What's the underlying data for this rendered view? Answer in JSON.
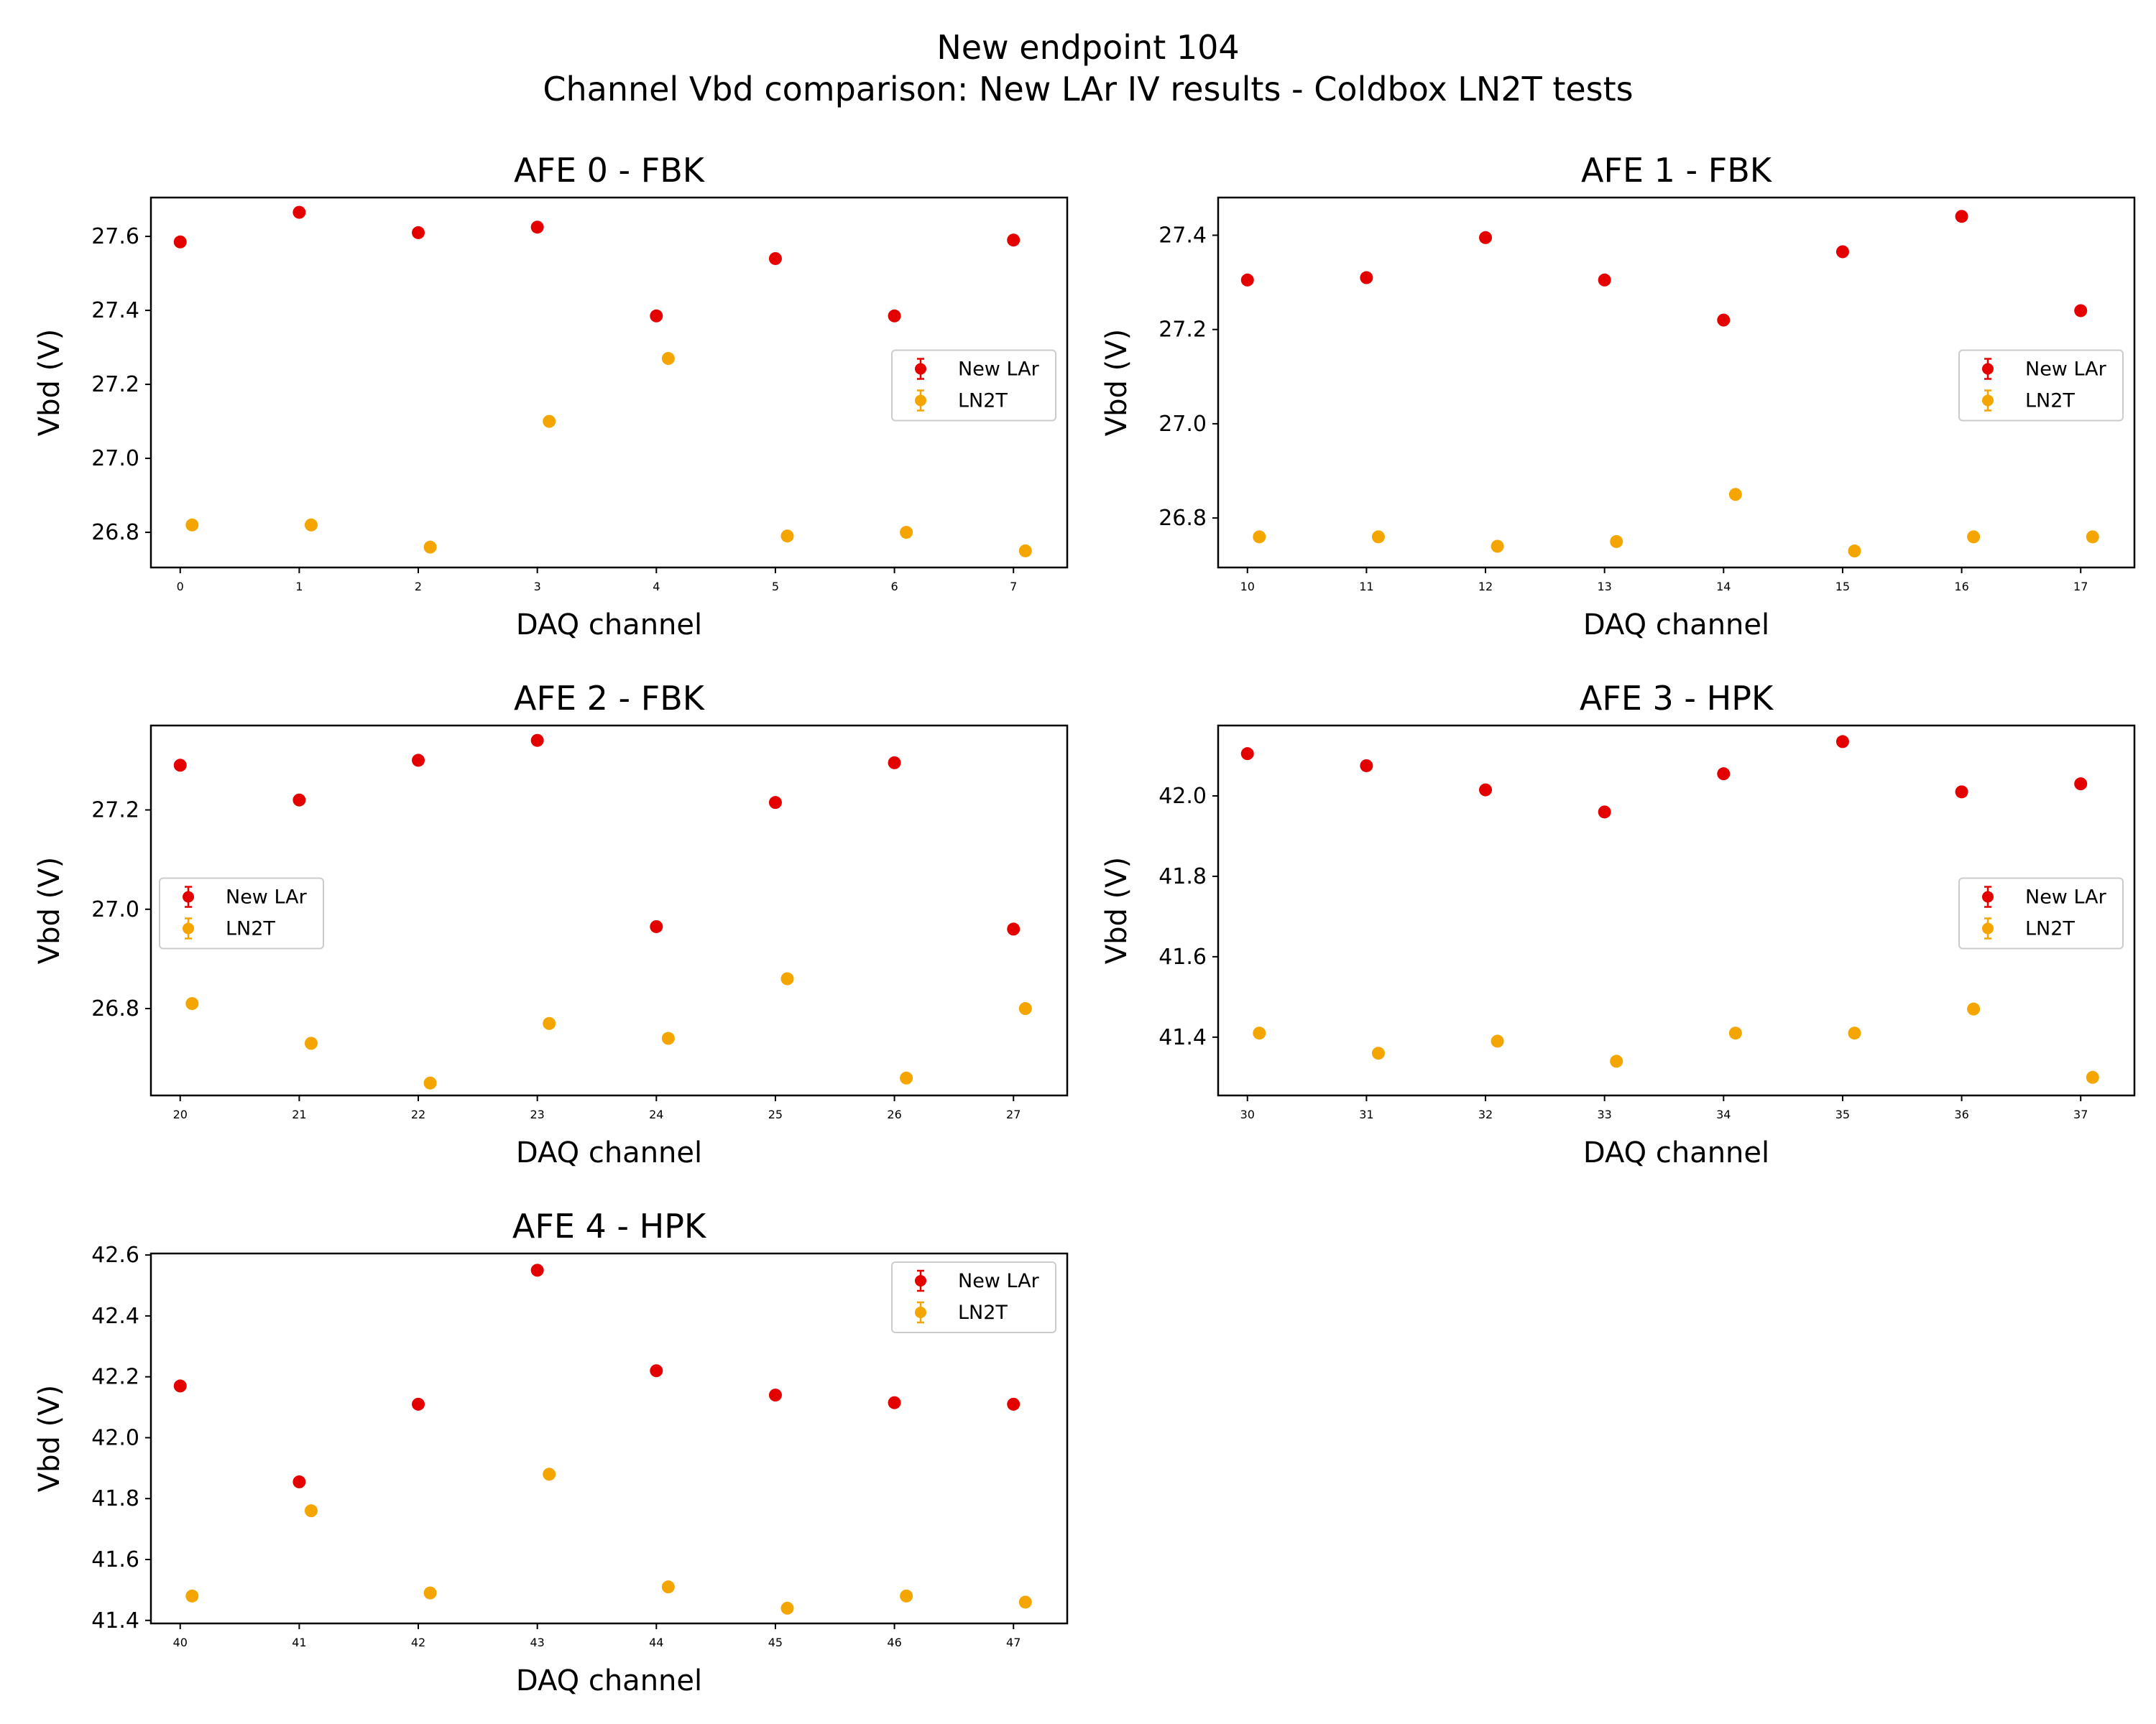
{
  "figure": {
    "title_line1": "New endpoint 104",
    "title_line2": "Channel Vbd comparison: New LAr IV results -  Coldbox LN2T tests"
  },
  "colors": {
    "new_lar": "#e50000",
    "ln2t": "#f5a500"
  },
  "chart_data": [
    {
      "type": "scatter",
      "title": "AFE 0 - FBK",
      "xlabel": "DAQ channel",
      "ylabel": "Vbd (V)",
      "x_ticks": [
        0,
        1,
        2,
        3,
        4,
        5,
        6,
        7
      ],
      "y_ticks": [
        26.8,
        27.0,
        27.2,
        27.4,
        27.6
      ],
      "ylim": [
        26.705,
        27.705
      ],
      "legend": "center-right",
      "series": [
        {
          "name": "New LAr",
          "x": [
            0,
            1,
            2,
            3,
            4,
            5,
            6,
            7
          ],
          "y": [
            27.585,
            27.665,
            27.61,
            27.625,
            27.385,
            27.54,
            27.385,
            27.59
          ]
        },
        {
          "name": "LN2T",
          "x": [
            0.1,
            1.1,
            2.1,
            3.1,
            4.1,
            5.1,
            6.1,
            7.1
          ],
          "y": [
            26.82,
            26.82,
            26.76,
            27.1,
            27.27,
            26.79,
            26.8,
            26.75
          ]
        }
      ]
    },
    {
      "type": "scatter",
      "title": "AFE 1 - FBK",
      "xlabel": "DAQ channel",
      "ylabel": "Vbd (V)",
      "x_ticks": [
        10,
        11,
        12,
        13,
        14,
        15,
        16,
        17
      ],
      "y_ticks": [
        26.8,
        27.0,
        27.2,
        27.4
      ],
      "ylim": [
        26.695,
        27.48
      ],
      "legend": "center-right",
      "series": [
        {
          "name": "New LAr",
          "x": [
            10,
            11,
            12,
            13,
            14,
            15,
            16,
            17
          ],
          "y": [
            27.305,
            27.31,
            27.395,
            27.305,
            27.22,
            27.365,
            27.44,
            27.24
          ]
        },
        {
          "name": "LN2T",
          "x": [
            10.1,
            11.1,
            12.1,
            13.1,
            14.1,
            15.1,
            16.1,
            17.1
          ],
          "y": [
            26.76,
            26.76,
            26.74,
            26.75,
            26.85,
            26.73,
            26.76,
            26.76
          ]
        }
      ]
    },
    {
      "type": "scatter",
      "title": "AFE 2 - FBK",
      "xlabel": "DAQ channel",
      "ylabel": "Vbd (V)",
      "x_ticks": [
        20,
        21,
        22,
        23,
        24,
        25,
        26,
        27
      ],
      "y_ticks": [
        26.8,
        27.0,
        27.2
      ],
      "ylim": [
        26.625,
        27.37
      ],
      "legend": "center-left",
      "series": [
        {
          "name": "New LAr",
          "x": [
            20,
            21,
            22,
            23,
            24,
            25,
            26,
            27
          ],
          "y": [
            27.29,
            27.22,
            27.3,
            27.34,
            26.965,
            27.215,
            27.295,
            26.96
          ]
        },
        {
          "name": "LN2T",
          "x": [
            20.1,
            21.1,
            22.1,
            23.1,
            24.1,
            25.1,
            26.1,
            27.1
          ],
          "y": [
            26.81,
            26.73,
            26.65,
            26.77,
            26.74,
            26.86,
            26.66,
            26.8
          ]
        }
      ]
    },
    {
      "type": "scatter",
      "title": "AFE 3 - HPK",
      "xlabel": "DAQ channel",
      "ylabel": "Vbd (V)",
      "x_ticks": [
        30,
        31,
        32,
        33,
        34,
        35,
        36,
        37
      ],
      "y_ticks": [
        41.4,
        41.6,
        41.8,
        42.0
      ],
      "ylim": [
        41.255,
        42.175
      ],
      "legend": "center-right",
      "series": [
        {
          "name": "New LAr",
          "x": [
            30,
            31,
            32,
            33,
            34,
            35,
            36,
            37
          ],
          "y": [
            42.105,
            42.075,
            42.015,
            41.96,
            42.055,
            42.135,
            42.01,
            42.03
          ]
        },
        {
          "name": "LN2T",
          "x": [
            30.1,
            31.1,
            32.1,
            33.1,
            34.1,
            35.1,
            36.1,
            37.1
          ],
          "y": [
            41.41,
            41.36,
            41.39,
            41.34,
            41.41,
            41.41,
            41.47,
            41.3
          ]
        }
      ]
    },
    {
      "type": "scatter",
      "title": "AFE 4 - HPK",
      "xlabel": "DAQ channel",
      "ylabel": "Vbd (V)",
      "x_ticks": [
        40,
        41,
        42,
        43,
        44,
        45,
        46,
        47
      ],
      "y_ticks": [
        41.4,
        41.6,
        41.8,
        42.0,
        42.2,
        42.4,
        42.6
      ],
      "ylim": [
        41.39,
        42.605
      ],
      "legend": "top-right",
      "series": [
        {
          "name": "New LAr",
          "x": [
            40,
            41,
            42,
            43,
            44,
            45,
            46,
            47
          ],
          "y": [
            42.17,
            41.855,
            42.11,
            42.55,
            42.22,
            42.14,
            42.115,
            42.11
          ]
        },
        {
          "name": "LN2T",
          "x": [
            40.1,
            41.1,
            42.1,
            43.1,
            44.1,
            45.1,
            46.1,
            47.1
          ],
          "y": [
            41.48,
            41.76,
            41.49,
            41.88,
            41.51,
            41.44,
            41.48,
            41.46
          ]
        }
      ]
    }
  ]
}
